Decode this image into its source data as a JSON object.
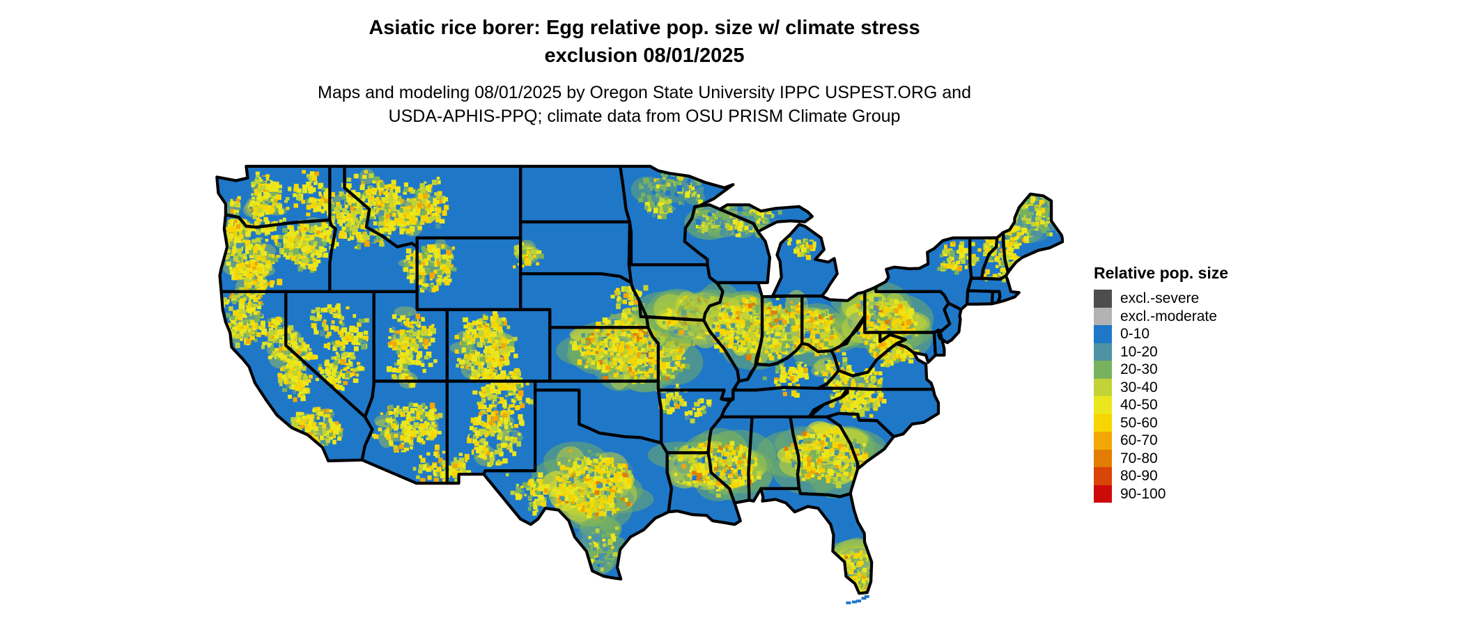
{
  "header": {
    "title_line1": "Asiatic rice borer: Egg relative pop. size w/ climate stress",
    "title_line2": "exclusion 08/01/2025",
    "subtitle_line1": "Maps and modeling 08/01/2025 by Oregon State University IPPC USPEST.ORG and",
    "subtitle_line2": "USDA-APHIS-PPQ; climate data from OSU PRISM Climate Group"
  },
  "legend": {
    "title": "Relative pop. size",
    "entries": [
      {
        "label": "excl.-severe",
        "color": "#4d4d4d"
      },
      {
        "label": "excl.-moderate",
        "color": "#b3b3b3"
      },
      {
        "label": "0-10",
        "color": "#1f77c8"
      },
      {
        "label": "10-20",
        "color": "#4d93a3"
      },
      {
        "label": "20-30",
        "color": "#78b25e"
      },
      {
        "label": "30-40",
        "color": "#c1d336"
      },
      {
        "label": "40-50",
        "color": "#ebe71c"
      },
      {
        "label": "50-60",
        "color": "#f7d500"
      },
      {
        "label": "60-70",
        "color": "#f2a705"
      },
      {
        "label": "70-80",
        "color": "#e27d04"
      },
      {
        "label": "80-90",
        "color": "#d94407"
      },
      {
        "label": "90-100",
        "color": "#cd0a0a"
      }
    ]
  },
  "map": {
    "base_color": "#1f77c8",
    "border_color": "#000000",
    "background_color": "#ffffff"
  }
}
